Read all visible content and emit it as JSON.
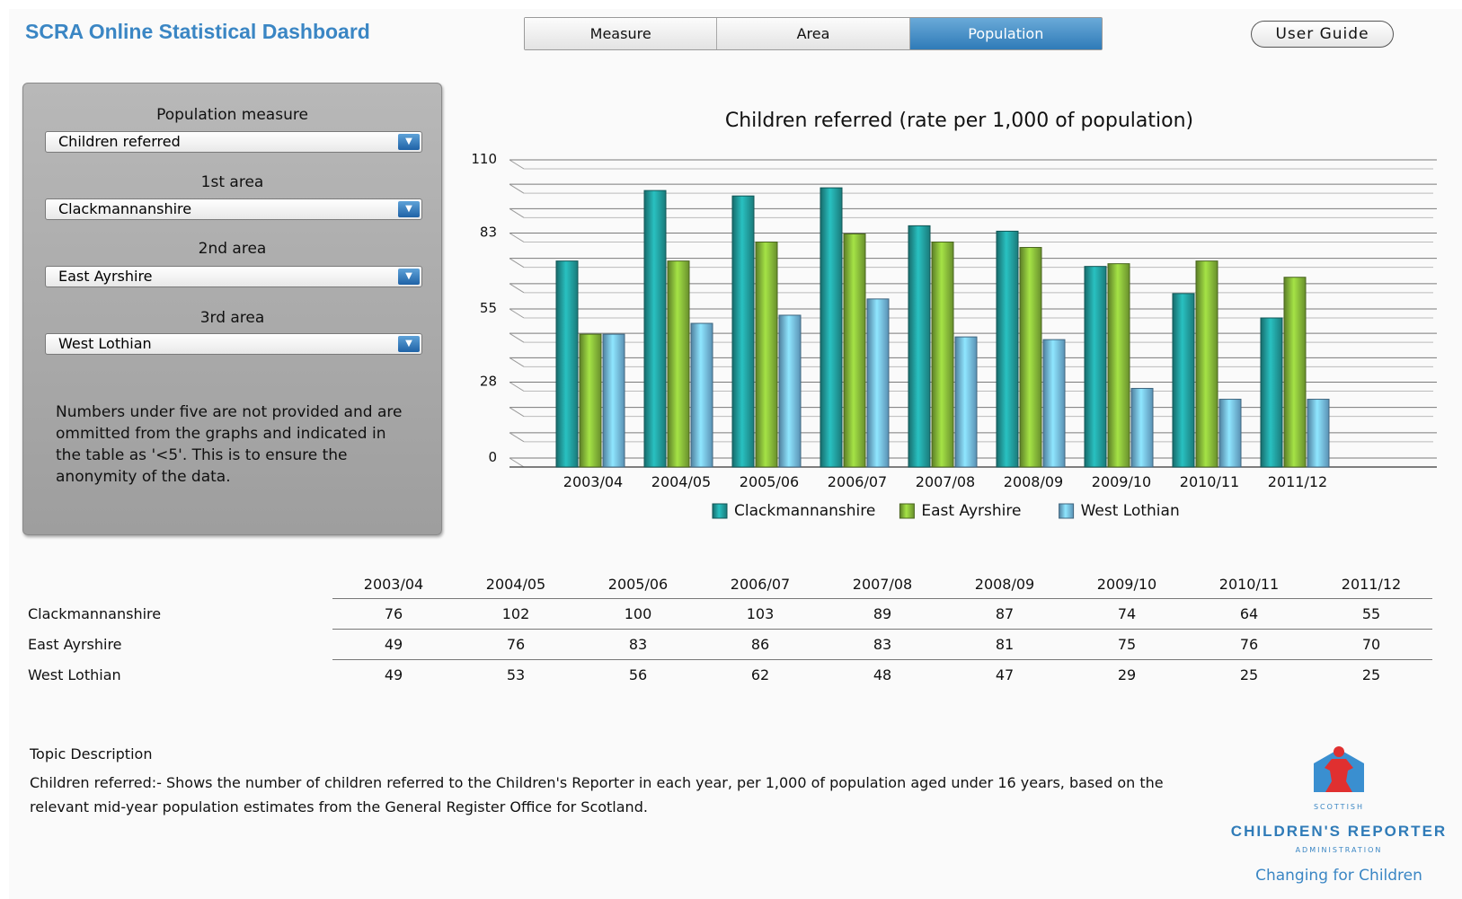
{
  "app": {
    "title": "SCRA Online Statistical Dashboard"
  },
  "tabs": [
    {
      "label": "Measure",
      "active": false
    },
    {
      "label": "Area",
      "active": false
    },
    {
      "label": "Population",
      "active": true
    }
  ],
  "user_guide_label": "User Guide",
  "filters": {
    "measure_label": "Population measure",
    "measure_value": "Children referred",
    "area1_label": "1st area",
    "area1_value": "Clackmannanshire",
    "area2_label": "2nd area",
    "area2_value": "East Ayrshire",
    "area3_label": "3rd area",
    "area3_value": "West Lothian",
    "note": "Numbers under five are not provided and are ommitted from the graphs and indicated in the table as '<5'. This is to ensure the anonymity of the data."
  },
  "chart_data": {
    "type": "bar",
    "title": "Children referred (rate per 1,000 of population)",
    "categories": [
      "2003/04",
      "2004/05",
      "2005/06",
      "2006/07",
      "2007/08",
      "2008/09",
      "2009/10",
      "2010/11",
      "2011/12"
    ],
    "series": [
      {
        "name": "Clackmannanshire",
        "values": [
          76,
          102,
          100,
          103,
          89,
          87,
          74,
          64,
          55
        ],
        "color": "#1e8f8f"
      },
      {
        "name": "East Ayrshire",
        "values": [
          49,
          76,
          83,
          86,
          83,
          81,
          75,
          76,
          70
        ],
        "color": "#7aa834"
      },
      {
        "name": "West Lothian",
        "values": [
          49,
          53,
          56,
          62,
          48,
          47,
          29,
          25,
          25
        ],
        "color": "#6aaad4"
      }
    ],
    "y_ticks": [
      "0",
      "28",
      "55",
      "83",
      "110"
    ],
    "ylim": [
      0,
      110
    ],
    "grid": true,
    "legend_position": "bottom"
  },
  "table": {
    "columns": [
      "2003/04",
      "2004/05",
      "2005/06",
      "2006/07",
      "2007/08",
      "2008/09",
      "2009/10",
      "2010/11",
      "2011/12"
    ],
    "rows": [
      {
        "label": "Clackmannanshire",
        "values": [
          "76",
          "102",
          "100",
          "103",
          "89",
          "87",
          "74",
          "64",
          "55"
        ]
      },
      {
        "label": "East Ayrshire",
        "values": [
          "49",
          "76",
          "83",
          "86",
          "83",
          "81",
          "75",
          "76",
          "70"
        ]
      },
      {
        "label": "West Lothian",
        "values": [
          "49",
          "53",
          "56",
          "62",
          "48",
          "47",
          "29",
          "25",
          "25"
        ]
      }
    ]
  },
  "description": {
    "title": "Topic Description",
    "body": "Children referred:- Shows the number of children referred to the Children's Reporter in each year, per 1,000 of population aged under 16 years, based on the relevant mid-year population estimates from the General Register Office for Scotland."
  },
  "logo": {
    "top_text": "SCOTTISH",
    "main_text": "CHILDREN'S REPORTER",
    "sub_text": "ADMINISTRATION",
    "tagline": "Changing for Children"
  }
}
